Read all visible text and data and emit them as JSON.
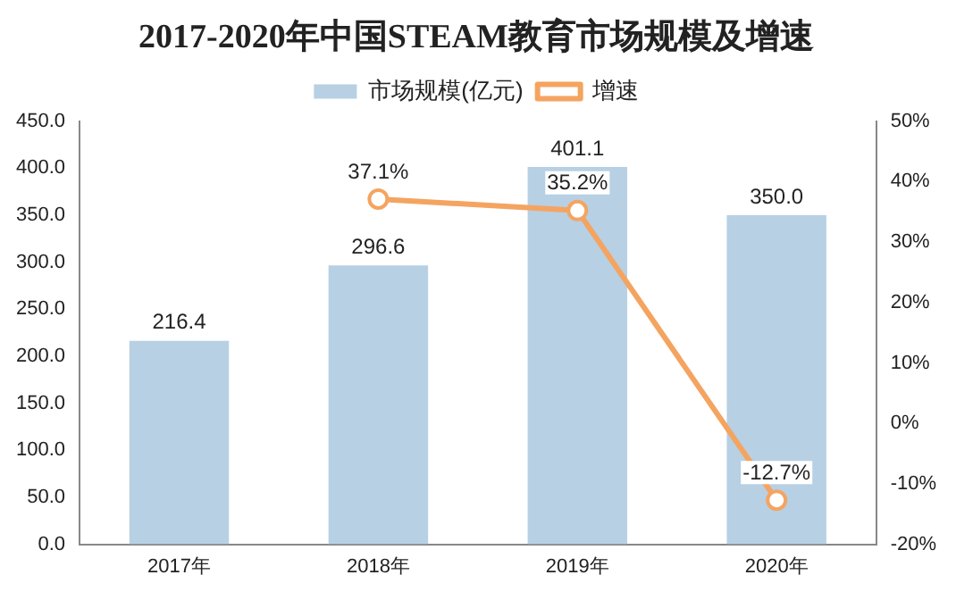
{
  "chart_data": {
    "type": "bar",
    "title": "2017-2020年中国STEAM教育市场规模及增速",
    "categories": [
      "2017年",
      "2018年",
      "2019年",
      "2020年"
    ],
    "series": [
      {
        "name": "市场规模(亿元)",
        "color": "#b7d0e4",
        "values": [
          216.4,
          296.6,
          401.1,
          350.0
        ],
        "value_labels": [
          "216.4",
          "296.6",
          "401.1",
          "350.0"
        ]
      },
      {
        "name": "增速",
        "type": "line",
        "axis": "y2",
        "color": "#f4a460",
        "values": [
          null,
          37.1,
          35.2,
          -12.7
        ],
        "value_labels": [
          null,
          "37.1%",
          "35.2%",
          "-12.7%"
        ]
      }
    ],
    "ylim": [
      0,
      450
    ],
    "yticks": [
      {
        "value": 0,
        "label": "0.0"
      },
      {
        "value": 50,
        "label": "50.0"
      },
      {
        "value": 100,
        "label": "100.0"
      },
      {
        "value": 150,
        "label": "150.0"
      },
      {
        "value": 200,
        "label": "200.0"
      },
      {
        "value": 250,
        "label": "250.0"
      },
      {
        "value": 300,
        "label": "300.0"
      },
      {
        "value": 350,
        "label": "350.0"
      },
      {
        "value": 400,
        "label": "400.0"
      },
      {
        "value": 450,
        "label": "450.0"
      }
    ],
    "y2lim": [
      -20,
      50
    ],
    "y2ticks": [
      {
        "value": -20,
        "label": "-20%"
      },
      {
        "value": -10,
        "label": "-10%"
      },
      {
        "value": 0,
        "label": "0%"
      },
      {
        "value": 10,
        "label": "10%"
      },
      {
        "value": 20,
        "label": "20%"
      },
      {
        "value": 30,
        "label": "30%"
      },
      {
        "value": 40,
        "label": "40%"
      },
      {
        "value": 50,
        "label": "50%"
      }
    ],
    "legend": "top",
    "grid": false,
    "marker": "circle"
  }
}
